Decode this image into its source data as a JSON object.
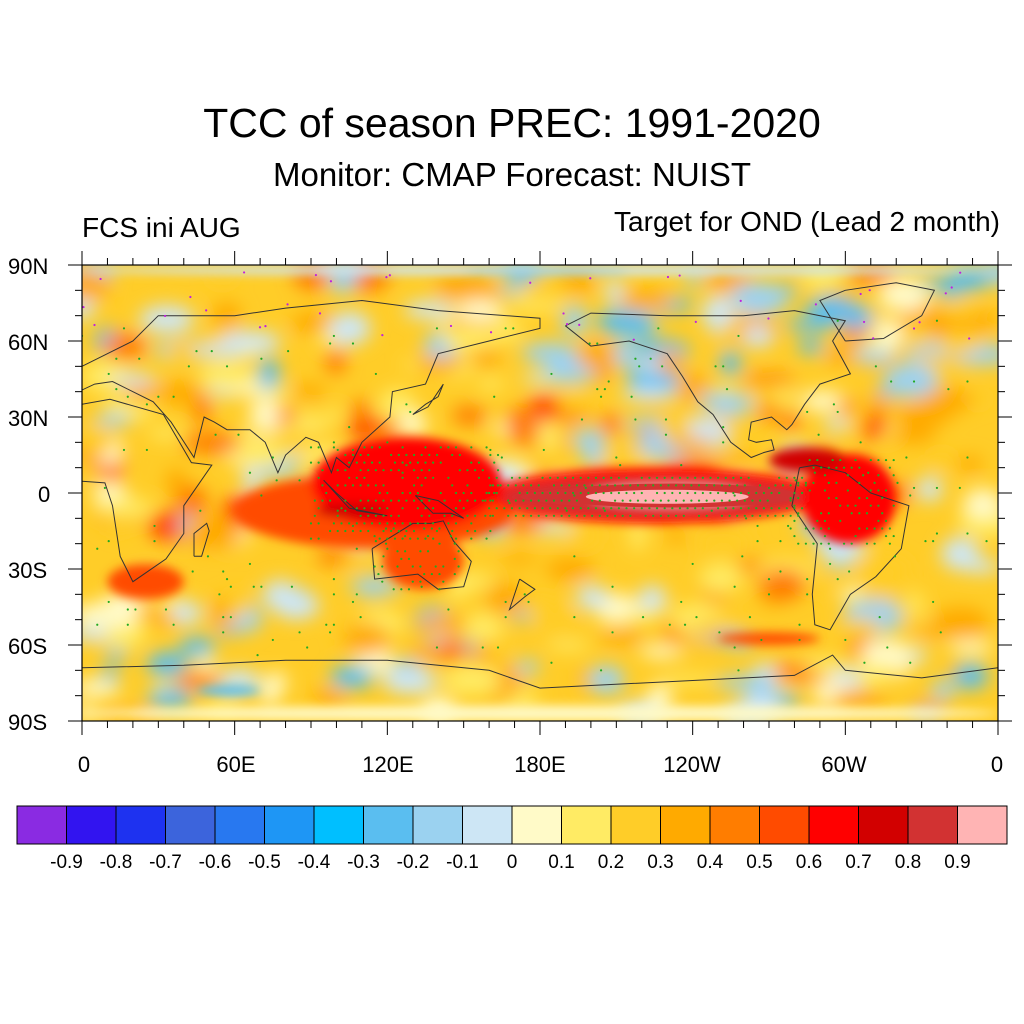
{
  "title": "TCC of season PREC: 1991-2020",
  "subtitle": "Monitor: CMAP   Forecast: NUIST",
  "left_label": "FCS ini AUG",
  "right_label": "Target for OND (Lead 2 month)",
  "map": {
    "projection": "cylindrical-equidistant",
    "lon_range": [
      0,
      360
    ],
    "lat_range": [
      -90,
      90
    ],
    "lat_labels": [
      "90N",
      "60N",
      "30N",
      "0",
      "30S",
      "60S",
      "90S"
    ],
    "lon_labels": [
      "0",
      "60E",
      "120E",
      "180E",
      "120W",
      "60W",
      "0"
    ],
    "field": "temporal correlation coefficient (TCC)",
    "stipple_color": "#22aa22",
    "features": [
      {
        "name": "equatorial-pacific-maximum",
        "lon": [
          165,
          280
        ],
        "lat": [
          -8,
          6
        ],
        "level": 0.9
      },
      {
        "name": "maritime-continent-band",
        "lon": [
          90,
          160
        ],
        "lat": [
          -15,
          20
        ],
        "level": 0.7
      },
      {
        "name": "amazon-maximum",
        "lon": [
          280,
          320
        ],
        "lat": [
          -20,
          15
        ],
        "level": 0.7
      },
      {
        "name": "australia-band",
        "lon": [
          115,
          150
        ],
        "lat": [
          -40,
          -10
        ],
        "level": 0.6
      }
    ]
  },
  "colorbar": {
    "labels": [
      "-0.9",
      "-0.8",
      "-0.7",
      "-0.6",
      "-0.5",
      "-0.4",
      "-0.3",
      "-0.2",
      "-0.1",
      "0",
      "0.1",
      "0.2",
      "0.3",
      "0.4",
      "0.5",
      "0.6",
      "0.7",
      "0.8",
      "0.9"
    ],
    "colors": [
      "#8a2be2",
      "#3214f0",
      "#1e32f0",
      "#3c64dc",
      "#2878f0",
      "#1e96f5",
      "#00bfff",
      "#5abef0",
      "#9bd2f0",
      "#cde6f5",
      "#fffac8",
      "#ffeb64",
      "#ffcd28",
      "#ffaa00",
      "#ff7d00",
      "#ff4b00",
      "#ff0000",
      "#d20000",
      "#d23232",
      "#ffb4b4"
    ]
  }
}
